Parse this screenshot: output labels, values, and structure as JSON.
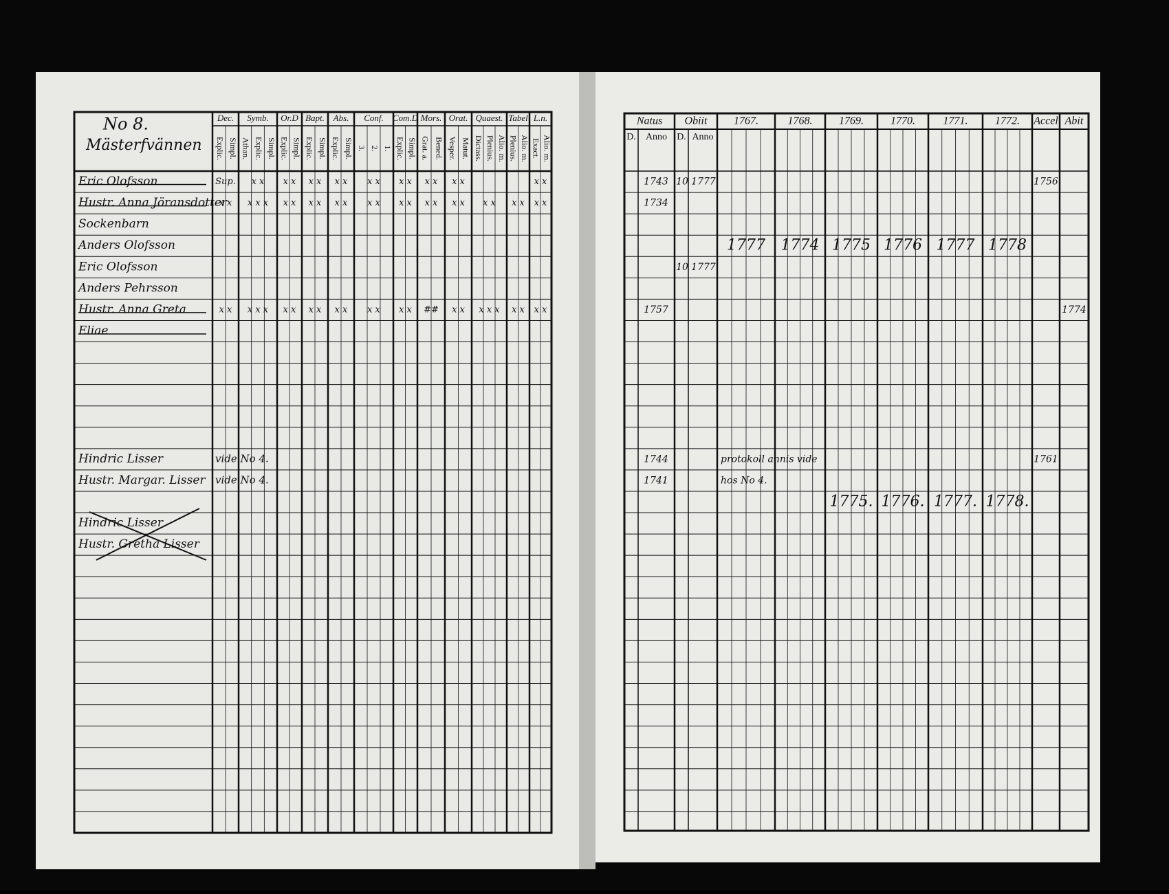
{
  "left_page": {
    "number": "No 8.",
    "place": "Mästerfvännen",
    "columns": [
      {
        "label": "Dec.",
        "sub": [
          "Explic.",
          "Simpl."
        ]
      },
      {
        "label": "Symb.",
        "sub": [
          "Athan.",
          "Explic.",
          "Simpl."
        ]
      },
      {
        "label": "Or.D",
        "sub": [
          "Explic.",
          "Simpl."
        ]
      },
      {
        "label": "Bapt.",
        "sub": [
          "Explic.",
          "Simpl."
        ]
      },
      {
        "label": "Abs.",
        "sub": [
          "Explic.",
          "Simpl."
        ]
      },
      {
        "label": "Conf.",
        "sub": [
          "3.",
          "2.",
          "1."
        ]
      },
      {
        "label": "Com.D",
        "sub": [
          "Explic.",
          "Simpl."
        ]
      },
      {
        "label": "Mors.",
        "sub": [
          "Grat. a.",
          "Bened."
        ]
      },
      {
        "label": "Orat.",
        "sub": [
          "Vesper.",
          "Matut."
        ]
      },
      {
        "label": "Quaest.",
        "sub": [
          "Dictass.",
          "Plenius.",
          "Alio. m."
        ]
      },
      {
        "label": "Tabel",
        "sub": [
          "Plenius.",
          "Alio. m."
        ]
      },
      {
        "label": "L.n.",
        "sub": [
          "Exact.",
          "Alio. m."
        ]
      }
    ]
  },
  "right_page": {
    "columns": [
      {
        "label": "Natus",
        "sub": [
          "D.",
          "Anno"
        ]
      },
      {
        "label": "Obiit",
        "sub": [
          "D.",
          "Anno"
        ]
      },
      {
        "label": "1767."
      },
      {
        "label": "1768."
      },
      {
        "label": "1769."
      },
      {
        "label": "1770."
      },
      {
        "label": "1771."
      },
      {
        "label": "1772."
      },
      {
        "label": "Accel"
      },
      {
        "label": "Abit"
      }
    ]
  },
  "rows": [
    {
      "name": "Eric Olofsson",
      "struck": true,
      "marks": [
        "Sup.",
        "x x",
        "x x",
        "x x",
        "x x",
        "x x",
        "x x",
        "x x",
        "x x",
        null,
        null,
        "x x"
      ],
      "natus_anno": "1743",
      "obiit_d": "10",
      "obiit_anno": "1777",
      "accel": "1756"
    },
    {
      "name": "Hustr. Anna Jöransdotter",
      "struck": true,
      "marks": [
        "x x",
        "x x x",
        "x x",
        "x x",
        "x x",
        "x x",
        "x x",
        "x x",
        "x x",
        "x x",
        "x x",
        "x x"
      ],
      "natus_anno": "1734"
    },
    {
      "name": "Sockenbarn"
    },
    {
      "name": "Anders Olofsson",
      "years": [
        "1777",
        "1774",
        "1775",
        "1776",
        "1777",
        "1778"
      ]
    },
    {
      "name": "Eric Olofsson",
      "obiit_d": "10",
      "obiit_anno": "1777"
    },
    {
      "name": "Anders Pehrsson"
    },
    {
      "name": "Hustr. Anna Greta",
      "struck": true,
      "marks": [
        "x x",
        "x x x",
        "x x",
        "x x",
        "x x",
        "x x",
        "x x",
        "##",
        "x x",
        "x x x",
        "x x",
        "x x"
      ],
      "natus_anno": "1757",
      "abit": "1774"
    },
    {
      "name": "Eliae",
      "struck": true
    },
    null,
    null,
    null,
    null,
    null,
    {
      "name": "Hindric Lisser",
      "ref": "vide No 4.",
      "natus_anno": "1744",
      "note": "protokoll annis vide",
      "accel": "1761"
    },
    {
      "name": "Hustr. Margar. Lisser",
      "ref": "vide No 4.",
      "natus_anno": "1741",
      "note": "hos No 4."
    },
    {
      "years": [
        null,
        null,
        "1775.",
        "1776.",
        "1777.",
        "1778."
      ]
    },
    {
      "name": "Hindric Lisser"
    },
    {
      "name": "Hustr. Gretha Lisser"
    },
    null,
    null,
    null,
    null,
    null,
    null,
    null,
    null,
    null,
    null,
    null,
    null,
    null
  ]
}
